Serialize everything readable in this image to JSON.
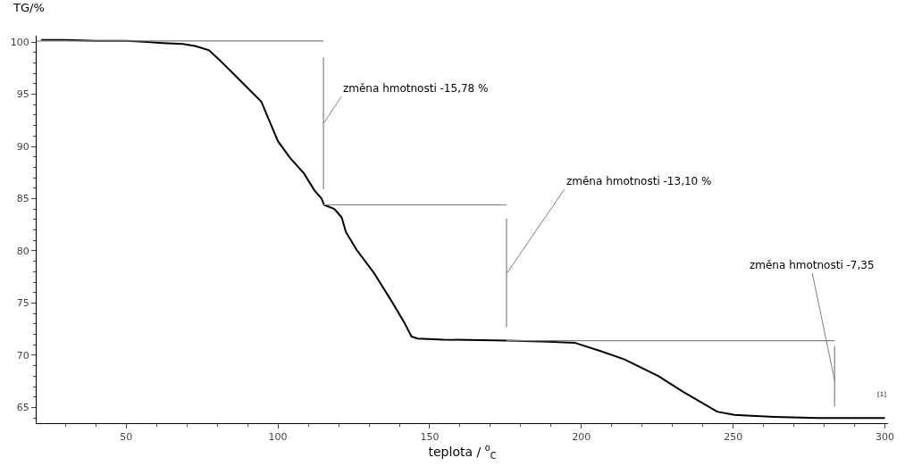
{
  "chart_data": {
    "type": "line",
    "xlabel": "teplota / $^{o}$$_{C}$",
    "ylabel": "TG/%",
    "xlim": [
      20.5,
      301
    ],
    "xticks": [
      50,
      100,
      150,
      200,
      250,
      300
    ],
    "ylim": [
      63.5,
      100.6
    ],
    "yticks": [
      65,
      70,
      75,
      80,
      85,
      90,
      95,
      100
    ],
    "series": [
      {
        "color": "#000000",
        "x": [
          22,
          30,
          40,
          50,
          57,
          62,
          68.7,
          73,
          77.3,
          81,
          85.9,
          90,
          94.5,
          100,
          104,
          108.6,
          112,
          114.4,
          115.2,
          118.6,
          121,
          122.4,
          125.9,
          131.6,
          137.4,
          141.7,
          144,
          146,
          154.6,
          175.3,
          189,
          197.7,
          206.3,
          214.2,
          225.4,
          233.5,
          244.7,
          250.4,
          256,
          263.6,
          278,
          300
        ],
        "values": [
          100.2,
          100.2,
          100.1,
          100.1,
          100.0,
          99.9,
          99.8,
          99.6,
          99.2,
          98.2,
          96.8,
          95.6,
          94.3,
          90.5,
          88.9,
          87.4,
          85.8,
          85.0,
          84.4,
          84.0,
          83.2,
          81.8,
          80.1,
          77.9,
          75.2,
          73.1,
          71.8,
          71.6,
          71.5,
          71.4,
          71.3,
          71.2,
          70.4,
          69.6,
          68.0,
          66.5,
          64.6,
          64.3,
          64.2,
          64.1,
          64.0,
          64.0
        ]
      },
      {
        "color": "#808080",
        "x": [
          20.5,
          115
        ],
        "values": [
          100.1,
          100.1
        ]
      },
      {
        "color": "#808080",
        "x": [
          115,
          175.3
        ],
        "values": [
          84.4,
          84.4
        ]
      },
      {
        "color": "#808080",
        "x": [
          175.3,
          283.4
        ],
        "values": [
          71.4,
          71.4
        ]
      },
      {
        "color": "#808080",
        "x": [
          115,
          115
        ],
        "values": [
          98.5,
          85.9
        ]
      },
      {
        "color": "#808080",
        "x": [
          175.3,
          175.3
        ],
        "values": [
          83.1,
          72.7
        ]
      },
      {
        "color": "#808080",
        "x": [
          283.4,
          283.4
        ],
        "values": [
          70.9,
          65.1
        ]
      }
    ],
    "annotations": [
      {
        "text": "změna hmotnosti -15,78 %",
        "x": 115,
        "y": 92.2
      },
      {
        "text": "změna hmotnosti -13,10 %",
        "x": 175.3,
        "y": 77.8
      },
      {
        "text": "změna hmotnosti -7,35",
        "x": 283.4,
        "y": 67.6
      },
      "[1]"
    ]
  }
}
